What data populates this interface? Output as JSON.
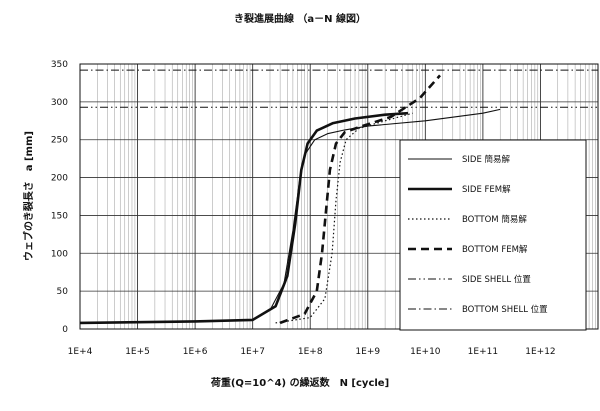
{
  "chart_data": {
    "type": "line",
    "title": "き裂進展曲線 （a－N 線図）",
    "xlabel": "荷重(Q=10^4) の繰返数　N [cycle]",
    "ylabel": "ウェブのき裂長さ　a [mm]",
    "x_scale": "log",
    "xlim": [
      10000,
      10000000000000
    ],
    "ylim": [
      0,
      350
    ],
    "x_tick_labels": [
      "1E+4",
      "1E+5",
      "1E+6",
      "1E+7",
      "1E+8",
      "1E+9",
      "1E+10",
      "1E+11",
      "1E+12"
    ],
    "y_ticks": [
      0,
      50,
      100,
      150,
      200,
      250,
      300,
      350
    ],
    "grid": true,
    "legend_position": "right",
    "series": [
      {
        "name": "SIDE 簡易解",
        "style": "thin-solid",
        "x": [
          10000,
          100000,
          1000000,
          10000000,
          20000000,
          35000000,
          50000000,
          65000000,
          80000000,
          120000000,
          200000000,
          400000000,
          1000000000,
          10000000000,
          100000000000,
          200000000000
        ],
        "y": [
          8,
          9,
          10,
          12,
          25,
          60,
          130,
          195,
          230,
          250,
          258,
          263,
          268,
          275,
          285,
          290
        ]
      },
      {
        "name": "SIDE FEM解",
        "style": "thick-solid",
        "x": [
          10000,
          100000,
          1000000,
          10000000,
          25000000,
          40000000,
          55000000,
          70000000,
          90000000,
          130000000,
          250000000,
          600000000,
          2000000000,
          5000000000
        ],
        "y": [
          8,
          9,
          10,
          12,
          30,
          70,
          140,
          210,
          245,
          262,
          272,
          278,
          283,
          285
        ]
      },
      {
        "name": "BOTTOM 簡易解",
        "style": "dotted",
        "x": [
          25000000,
          100000000,
          180000000,
          240000000,
          280000000,
          330000000,
          420000000,
          700000000,
          2000000000,
          6000000000
        ],
        "y": [
          8,
          15,
          40,
          100,
          170,
          220,
          250,
          265,
          275,
          285
        ]
      },
      {
        "name": "BOTTOM FEM解",
        "style": "dashed",
        "x": [
          30000000,
          80000000,
          130000000,
          160000000,
          190000000,
          220000000,
          280000000,
          400000000,
          800000000,
          2500000000,
          8000000000,
          18000000000
        ],
        "y": [
          8,
          20,
          50,
          100,
          160,
          210,
          245,
          260,
          268,
          280,
          305,
          335
        ]
      },
      {
        "name": "SIDE SHELL 位置",
        "style": "dash-dot-dot",
        "x": [
          10000,
          10000000000000
        ],
        "y": [
          293,
          293
        ]
      },
      {
        "name": "BOTTOM SHELL 位置",
        "style": "dash-dot",
        "x": [
          10000,
          10000000000000
        ],
        "y": [
          342,
          342
        ]
      }
    ]
  }
}
